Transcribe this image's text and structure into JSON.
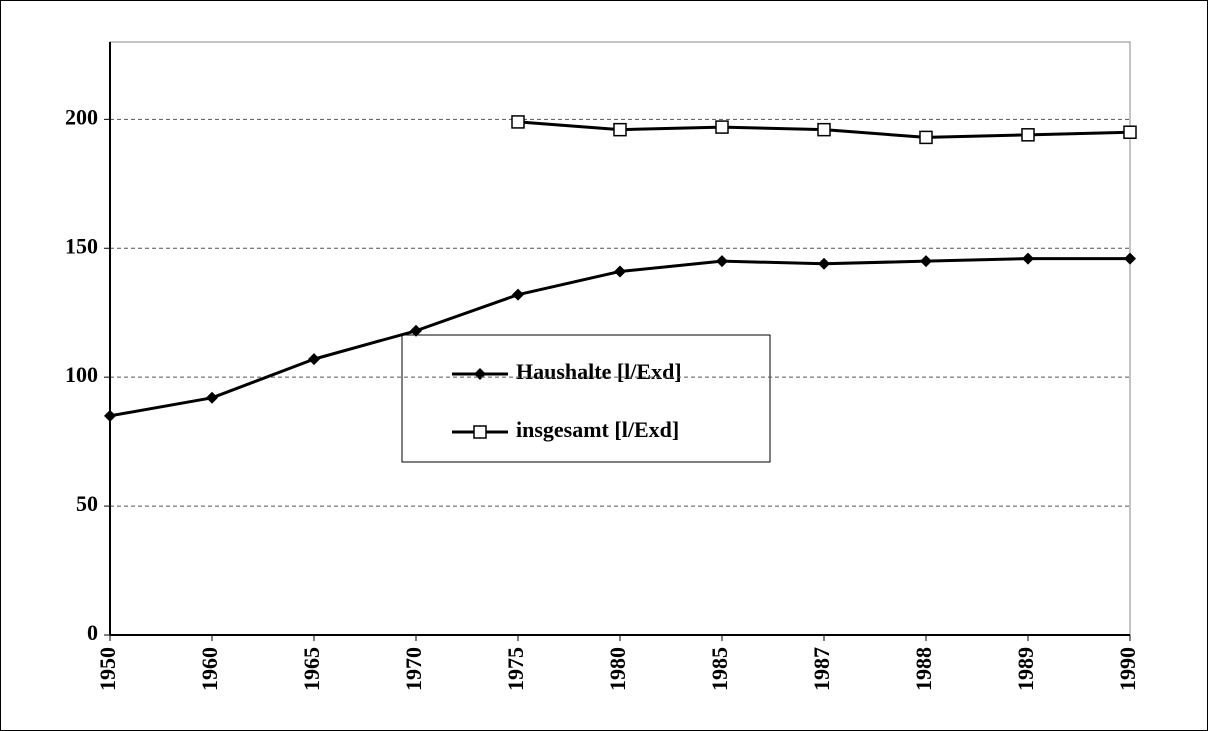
{
  "chart_data": {
    "type": "line",
    "categories": [
      "1950",
      "1960",
      "1965",
      "1970",
      "1975",
      "1980",
      "1985",
      "1987",
      "1988",
      "1989",
      "1990"
    ],
    "series": [
      {
        "name": "Haushalte [l/Exd]",
        "color": "#000000",
        "marker": "diamond",
        "values": [
          85,
          92,
          107,
          118,
          132,
          141,
          145,
          144,
          145,
          146,
          146
        ]
      },
      {
        "name": "insgesamt [l/Exd]",
        "color": "#000000",
        "marker": "square",
        "values": [
          null,
          null,
          null,
          null,
          199,
          196,
          197,
          196,
          193,
          194,
          195
        ]
      }
    ],
    "ylim": [
      0,
      230
    ],
    "yticks": [
      0,
      50,
      100,
      150,
      200
    ],
    "grid": true
  }
}
